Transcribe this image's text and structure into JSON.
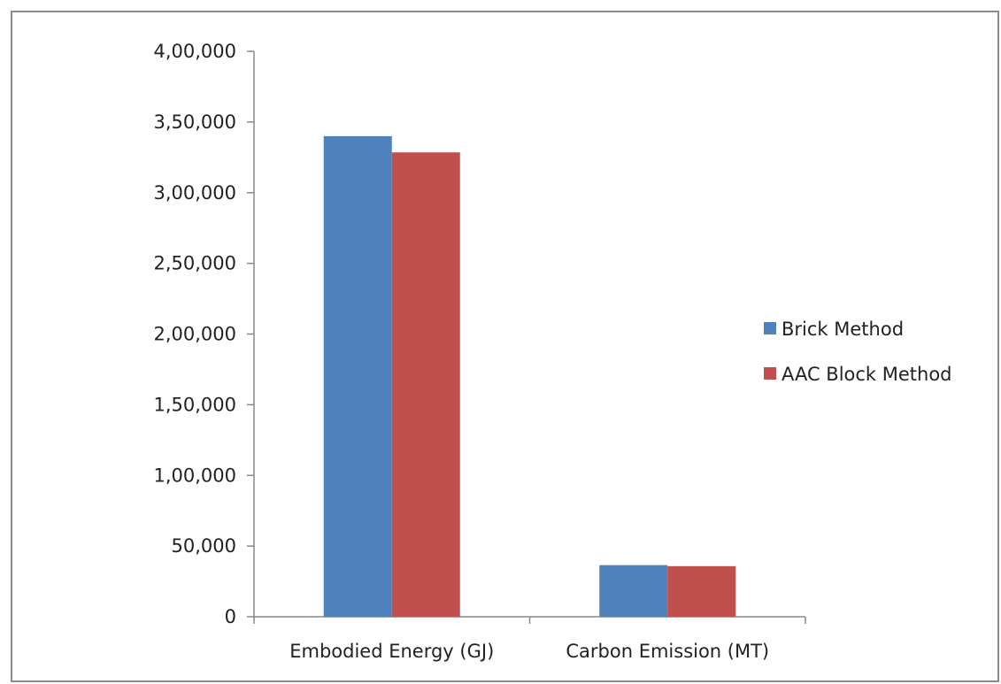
{
  "chart_data": {
    "type": "bar",
    "categories": [
      "Embodied Energy (GJ)",
      "Carbon Emission (MT)"
    ],
    "series": [
      {
        "name": "Brick Method",
        "color": "#4f81bd",
        "values": [
          340000,
          36500
        ]
      },
      {
        "name": "AAC Block Method",
        "color": "#c0504d",
        "values": [
          328500,
          35800
        ]
      }
    ],
    "title": "",
    "xlabel": "",
    "ylabel": "",
    "ylim": [
      0,
      400000
    ],
    "yticks": [
      0,
      50000,
      100000,
      150000,
      200000,
      250000,
      300000,
      350000,
      400000
    ],
    "ytick_labels": [
      "0",
      "50,000",
      "1,00,000",
      "1,50,000",
      "2,00,000",
      "2,50,000",
      "3,00,000",
      "3,50,000",
      "4,00,000"
    ],
    "grid": false,
    "legend_position": "right"
  }
}
